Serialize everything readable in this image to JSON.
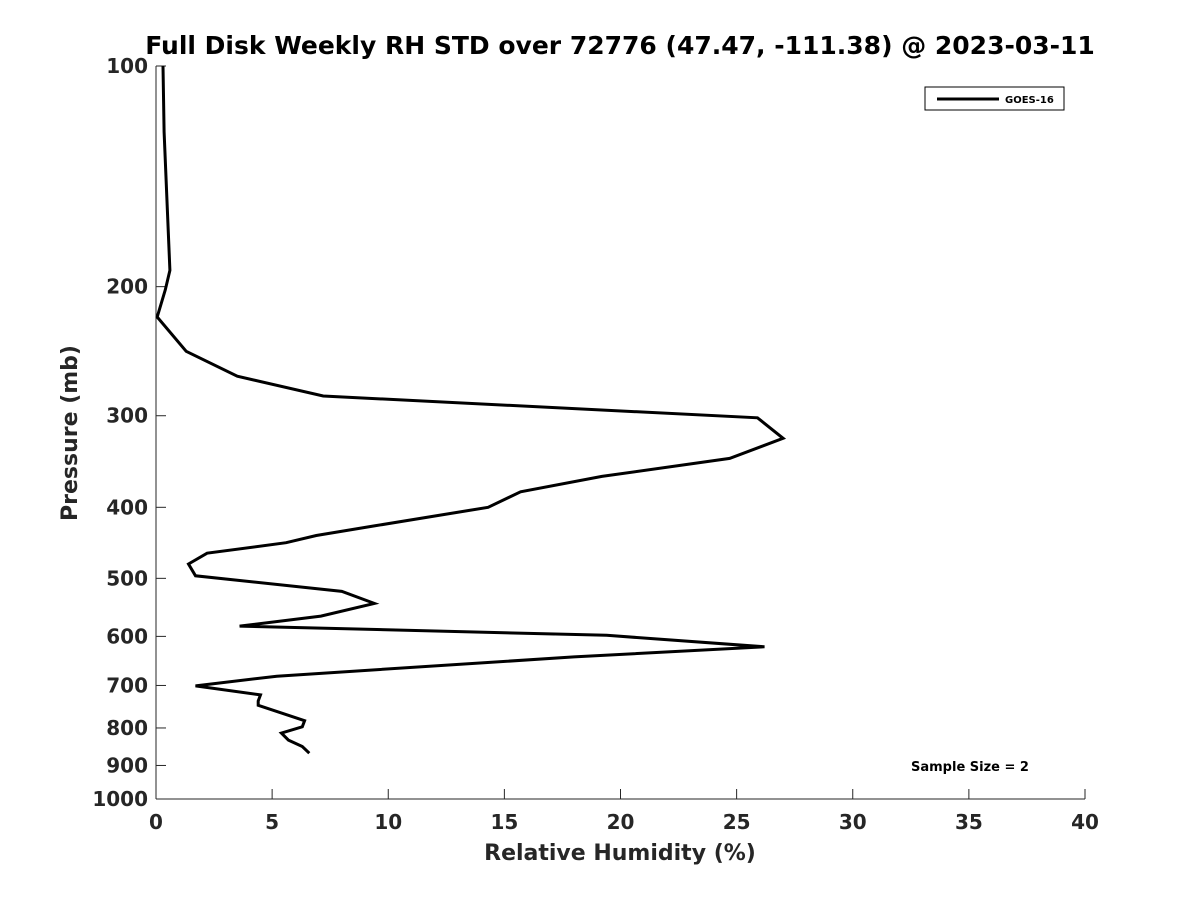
{
  "chart_data": {
    "type": "line",
    "title": "Full Disk Weekly RH STD over 72776 (47.47, -111.38) @ 2023-03-11",
    "xlabel": "Relative Humidity (%)",
    "ylabel": "Pressure (mb)",
    "xlim": [
      0,
      40
    ],
    "ylim": [
      100,
      1000
    ],
    "y_scale": "log",
    "y_reversed": true,
    "grid": false,
    "legend_position": "top-right",
    "x_ticks": [
      "0",
      "5",
      "10",
      "15",
      "20",
      "25",
      "30",
      "35",
      "40"
    ],
    "y_ticks": [
      "100",
      "200",
      "300",
      "400",
      "500",
      "600",
      "700",
      "800",
      "900",
      "1000"
    ],
    "series": [
      {
        "name": "GOES-16",
        "color": "#000000",
        "x": [
          0.3,
          0.35,
          0.5,
          0.55,
          0.6,
          0.4,
          0.05,
          1.3,
          3.5,
          7.2,
          25.9,
          27.0,
          24.7,
          19.2,
          15.7,
          14.3,
          9.4,
          6.9,
          5.6,
          2.2,
          1.4,
          1.7,
          8.0,
          9.4,
          7.1,
          3.6,
          19.4,
          26.2,
          18.0,
          5.2,
          1.7,
          4.5,
          4.4,
          4.4,
          6.4,
          6.3,
          5.4,
          5.7,
          6.3,
          6.6
        ],
        "y": [
          100,
          123,
          160,
          175,
          190,
          202,
          220,
          245,
          265,
          282,
          302,
          322,
          343,
          363,
          381,
          400,
          424,
          437,
          447,
          462,
          478,
          496,
          521,
          541,
          563,
          581,
          598,
          620,
          640,
          680,
          701,
          721,
          735,
          745,
          782,
          797,
          813,
          831,
          848,
          866
        ]
      }
    ],
    "annotations": [
      "Sample Size = 2"
    ]
  }
}
